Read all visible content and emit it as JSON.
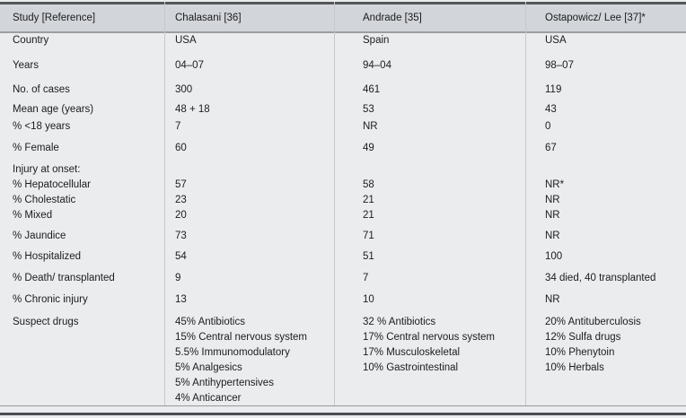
{
  "table": {
    "columns": [
      "Study [Reference]",
      "Chalasani [36]",
      "Andrade [35]",
      "Ostapowicz/ Lee [37]*"
    ],
    "sections": [
      {
        "rows": [
          {
            "label": "Country",
            "c1": "USA",
            "c2": "Spain",
            "c3": "USA"
          }
        ]
      },
      {
        "rows": [
          {
            "label": "Years",
            "c1": "04–07",
            "c2": "94–04",
            "c3": "98–07"
          }
        ]
      },
      {
        "rows": [
          {
            "label": "No. of cases",
            "c1": "300",
            "c2": "461",
            "c3": "119"
          }
        ]
      },
      {
        "rows": [
          {
            "label": "Mean age (years)",
            "c1": "48 + 18",
            "c2": "53",
            "c3": "43"
          },
          {
            "label": "% <18 years",
            "c1": "7",
            "c2": "NR",
            "c3": "0"
          }
        ]
      },
      {
        "rows": [
          {
            "label": "% Female",
            "c1": "60",
            "c2": "49",
            "c3": "67"
          }
        ]
      },
      {
        "rows": [
          {
            "label": "Injury at onset:",
            "c1": "",
            "c2": "",
            "c3": ""
          },
          {
            "label": "% Hepatocellular",
            "c1": "57",
            "c2": "58",
            "c3": "NR*"
          },
          {
            "label": "% Cholestatic",
            "c1": "23",
            "c2": "21",
            "c3": "NR"
          },
          {
            "label": "% Mixed",
            "c1": "20",
            "c2": "21",
            "c3": "NR"
          }
        ]
      },
      {
        "rows": [
          {
            "label": "% Jaundice",
            "c1": "73",
            "c2": "71",
            "c3": "NR"
          }
        ]
      },
      {
        "rows": [
          {
            "label": "% Hospitalized",
            "c1": "54",
            "c2": "51",
            "c3": "100"
          }
        ]
      },
      {
        "rows": [
          {
            "label": "% Death/ transplanted",
            "c1": "9",
            "c2": "7",
            "c3": "34 died, 40 transplanted"
          }
        ]
      },
      {
        "rows": [
          {
            "label": "% Chronic injury",
            "c1": "13",
            "c2": "10",
            "c3": "NR"
          }
        ]
      },
      {
        "rows": [
          {
            "label": "Suspect drugs",
            "c1": [
              "45% Antibiotics",
              "15% Central nervous system",
              "5.5% Immunomodulatory",
              "5% Analgesics",
              "5% Antihypertensives",
              "4% Anticancer"
            ],
            "c2": [
              "32 % Antibiotics",
              "17% Central nervous system",
              "17% Musculoskeletal",
              "10% Gastrointestinal"
            ],
            "c3": [
              "20% Antituberculosis",
              "12% Sulfa drugs",
              "10% Phenytoin",
              "10% Herbals"
            ]
          }
        ]
      }
    ]
  },
  "colors": {
    "header_background": "#d2d5d9",
    "body_background": "#ebecee",
    "rule_dark": "#54565a",
    "rule_light": "#9b9da1",
    "text": "#1c1c1e"
  }
}
